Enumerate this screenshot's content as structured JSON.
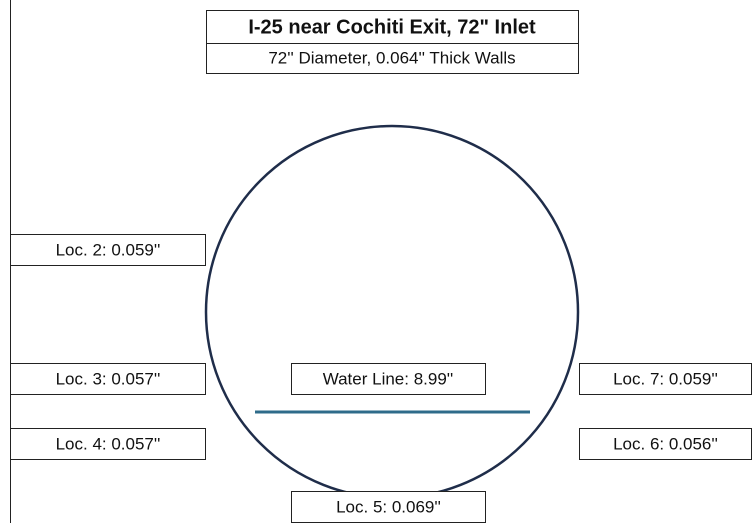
{
  "header": {
    "title": "I-25 near Cochiti Exit, 72\" Inlet",
    "subtitle": "72'' Diameter, 0.064'' Thick Walls"
  },
  "water_line": {
    "label": "Water Line: 8.99''"
  },
  "locations": [
    {
      "label": "Loc. 2: 0.059''"
    },
    {
      "label": "Loc. 3: 0.057''"
    },
    {
      "label": "Loc. 4: 0.057''"
    },
    {
      "label": "Loc. 7: 0.059''"
    },
    {
      "label": "Loc. 6: 0.056''"
    },
    {
      "label": "Loc. 5: 0.069''"
    }
  ]
}
